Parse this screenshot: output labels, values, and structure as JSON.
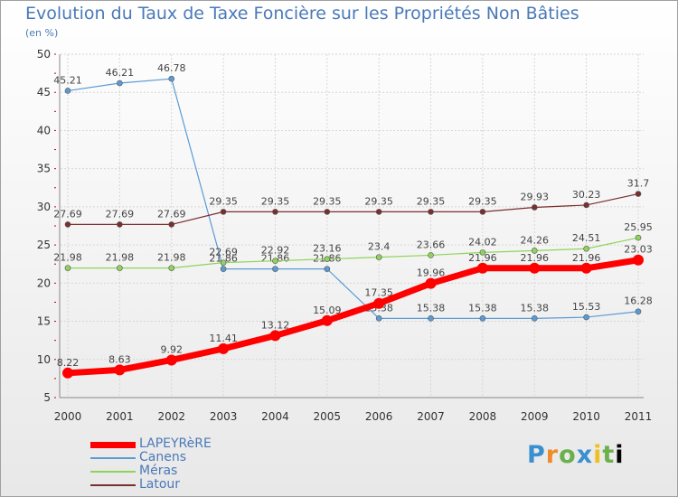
{
  "header": {
    "title": "Evolution du Taux de Taxe Foncière sur les Propriétés Non Bâties",
    "subtitle": "(en %)"
  },
  "brand": {
    "letters": [
      "P",
      "r",
      "o",
      "x",
      "i",
      "t",
      "i"
    ],
    "text": "Proxiti"
  },
  "chart_data": {
    "type": "line",
    "title": "Evolution du Taux de Taxe Foncière sur les Propriétés Non Bâties",
    "ylabel": "(en %)",
    "xlabel": "",
    "categories": [
      "2000",
      "2001",
      "2002",
      "2003",
      "2004",
      "2005",
      "2006",
      "2007",
      "2008",
      "2009",
      "2010",
      "2011"
    ],
    "ylim": [
      5,
      50
    ],
    "yticks": [
      5,
      10,
      15,
      20,
      25,
      30,
      35,
      40,
      45,
      50
    ],
    "grid": true,
    "legend_position": "bottom-left",
    "series": [
      {
        "name": "Canens",
        "color": "#5b9bd5",
        "values": [
          45.21,
          46.21,
          46.78,
          21.86,
          21.86,
          21.86,
          15.38,
          15.38,
          15.38,
          15.38,
          15.53,
          16.28
        ],
        "labels": [
          "45.21",
          "46.21",
          "46.78",
          "21.86",
          "21.86",
          "21.86",
          "15.38",
          "15.38",
          "15.38",
          "15.38",
          "15.53",
          "16.28"
        ]
      },
      {
        "name": "Méras",
        "color": "#8fd45a",
        "values": [
          21.98,
          21.98,
          21.98,
          22.69,
          22.92,
          23.16,
          23.4,
          23.66,
          24.02,
          24.26,
          24.51,
          25.95
        ],
        "labels": [
          "21.98",
          "21.98",
          "21.98",
          "22.69",
          "22.92",
          "23.16",
          "23.4",
          "23.66",
          "24.02",
          "24.26",
          "24.51",
          "25.95"
        ]
      },
      {
        "name": "Latour",
        "color": "#7a2e2e",
        "values": [
          27.69,
          27.69,
          27.69,
          29.35,
          29.35,
          29.35,
          29.35,
          29.35,
          29.35,
          29.93,
          30.23,
          31.7
        ],
        "labels": [
          "27.69",
          "27.69",
          "27.69",
          "29.35",
          "29.35",
          "29.35",
          "29.35",
          "29.35",
          "29.35",
          "29.93",
          "30.23",
          "31.7"
        ]
      },
      {
        "name": "LAPEYRèRE",
        "color": "#ff0000",
        "values": [
          8.22,
          8.63,
          9.92,
          11.41,
          13.12,
          15.09,
          17.35,
          19.96,
          21.96,
          21.96,
          21.96,
          23.03
        ],
        "labels": [
          "8.22",
          "8.63",
          "9.92",
          "11.41",
          "13.12",
          "15.09",
          "17.35",
          "19.96",
          "21.96",
          "21.96",
          "21.96",
          "23.03"
        ]
      }
    ],
    "legend": [
      "LAPEYRèRE",
      "Canens",
      "Méras",
      "Latour"
    ]
  }
}
